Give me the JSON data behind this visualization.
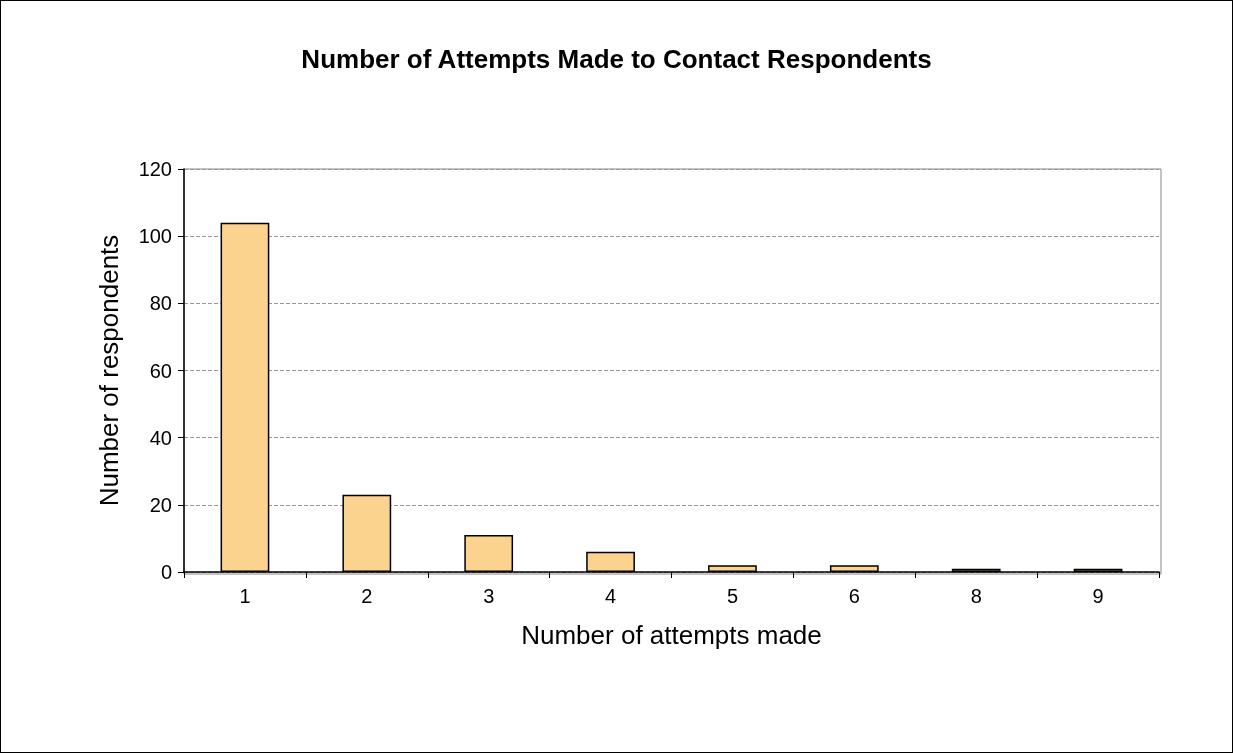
{
  "chart_data": {
    "type": "bar",
    "title": "Number of Attempts Made to Contact Respondents",
    "xlabel": "Number of attempts made",
    "ylabel": "Number of respondents",
    "categories": [
      "1",
      "2",
      "3",
      "4",
      "5",
      "6",
      "8",
      "9"
    ],
    "values": [
      104,
      23,
      11,
      6,
      2,
      2,
      1,
      1
    ],
    "color": "#fbd28e",
    "ylim": [
      0,
      120
    ],
    "yticks": [
      0,
      20,
      40,
      60,
      80,
      100,
      120
    ],
    "grid": "y"
  }
}
